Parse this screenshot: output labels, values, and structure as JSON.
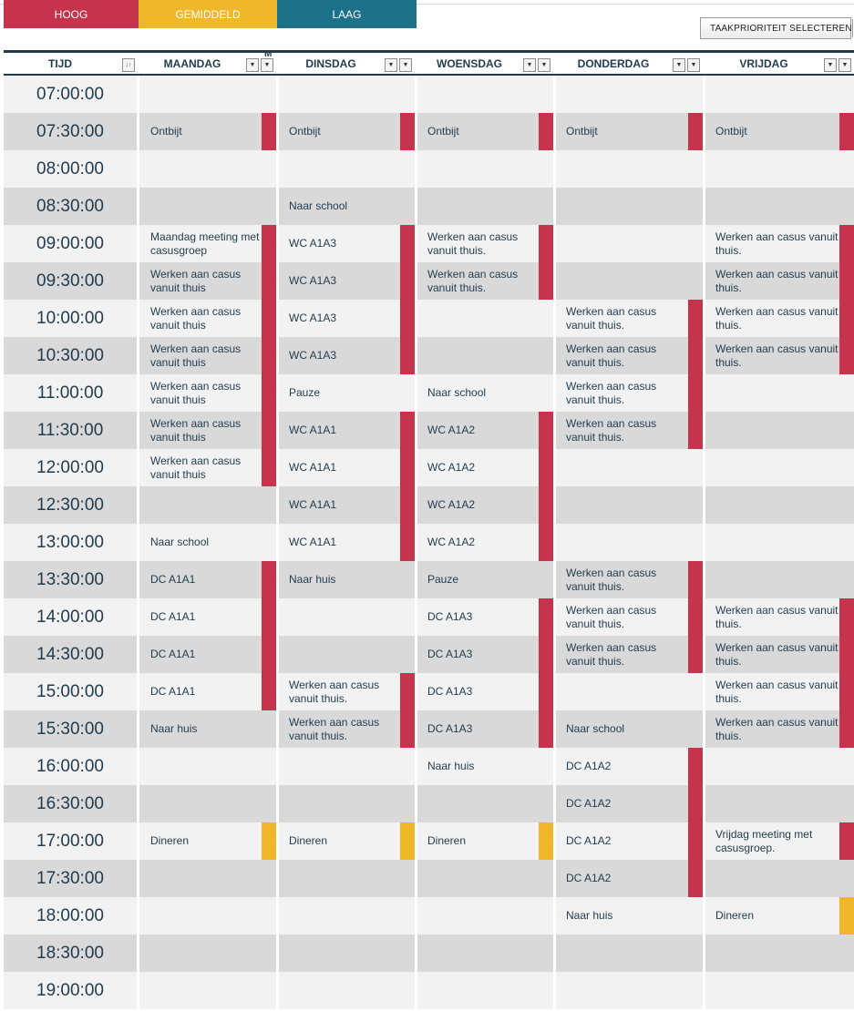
{
  "legend": {
    "high": "HOOG",
    "medium": "GEMIDDELD",
    "low": "LAAG"
  },
  "colors": {
    "high": "#c5334c",
    "medium": "#f1b72a",
    "low": "#1d7189",
    "header_rule": "#1f3b4d",
    "row_light": "#f2f2f2",
    "row_dark": "#d9d9d9"
  },
  "priority_selector": {
    "label": "TAAKPRIORITEIT SELECTEREN",
    "icon": "dropdown-arrow-icon"
  },
  "columns": [
    {
      "label": "TIJD",
      "filter_icon": "sort-filter-icon"
    },
    {
      "label": "MAANDAG",
      "filter_icon": "filter-dropdown-icon"
    },
    {
      "label": "DINSDAG",
      "filter_icon": "filter-dropdown-icon"
    },
    {
      "label": "WOENSDAG",
      "filter_icon": "filter-dropdown-icon"
    },
    {
      "label": "DONDERDAG",
      "filter_icon": "filter-dropdown-icon"
    },
    {
      "label": "VRIJDAG",
      "filter_icon": "filter-dropdown-icon"
    }
  ],
  "cut_header_fragment": "M",
  "times": [
    "07:00:00",
    "07:30:00",
    "08:00:00",
    "08:30:00",
    "09:00:00",
    "09:30:00",
    "10:00:00",
    "10:30:00",
    "11:00:00",
    "11:30:00",
    "12:00:00",
    "12:30:00",
    "13:00:00",
    "13:30:00",
    "14:00:00",
    "14:30:00",
    "15:00:00",
    "15:30:00",
    "16:00:00",
    "16:30:00",
    "17:00:00",
    "17:30:00",
    "18:00:00",
    "18:30:00",
    "19:00:00"
  ],
  "schedule": {
    "maandag": [
      "",
      "Ontbijt",
      "",
      "",
      "Maandag meeting met casusgroep",
      "Werken aan casus vanuit thuis",
      "Werken aan casus vanuit thuis",
      "Werken aan casus vanuit thuis",
      "Werken aan casus vanuit thuis",
      "Werken aan casus vanuit thuis",
      "Werken aan casus vanuit thuis",
      "",
      "Naar school",
      "DC A1A1",
      "DC A1A1",
      "DC A1A1",
      "DC A1A1",
      "Naar huis",
      "",
      "",
      "Dineren",
      "",
      "",
      "",
      ""
    ],
    "dinsdag": [
      "",
      "Ontbijt",
      "",
      "Naar school",
      "WC A1A3",
      "WC A1A3",
      "WC A1A3",
      "WC A1A3",
      "Pauze",
      "WC A1A1",
      "WC A1A1",
      "WC A1A1",
      "WC A1A1",
      "Naar huis",
      "",
      "",
      "Werken aan casus vanuit thuis.",
      "Werken aan casus vanuit thuis.",
      "",
      "",
      "Dineren",
      "",
      "",
      "",
      ""
    ],
    "woensdag": [
      "",
      "Ontbijt",
      "",
      "",
      "Werken aan casus vanuit thuis.",
      "Werken aan casus vanuit thuis.",
      "",
      "",
      "Naar school",
      "WC A1A2",
      "WC A1A2",
      "WC A1A2",
      "WC A1A2",
      "Pauze",
      "DC A1A3",
      "DC A1A3",
      "DC A1A3",
      "DC A1A3",
      "Naar huis",
      "",
      "Dineren",
      "",
      "",
      "",
      ""
    ],
    "donderdag": [
      "",
      "Ontbijt",
      "",
      "",
      "",
      "",
      "Werken aan casus vanuit thuis.",
      "Werken aan casus vanuit thuis.",
      "Werken aan casus vanuit thuis.",
      "Werken aan casus vanuit thuis.",
      "",
      "",
      "",
      "Werken aan casus vanuit thuis.",
      "Werken aan casus vanuit thuis.",
      "Werken aan casus vanuit thuis.",
      "",
      "Naar school",
      "DC A1A2",
      "DC A1A2",
      "DC A1A2",
      "DC A1A2",
      "Naar huis",
      "",
      ""
    ],
    "vrijdag": [
      "",
      "Ontbijt",
      "",
      "",
      "Werken aan casus vanuit thuis.",
      "Werken aan casus vanuit thuis.",
      "Werken aan casus vanuit thuis.",
      "Werken aan casus vanuit thuis.",
      "",
      "",
      "",
      "",
      "",
      "",
      "Werken aan casus vanuit thuis.",
      "Werken aan casus vanuit thuis.",
      "Werken aan casus vanuit thuis.",
      "Werken aan casus vanuit thuis.",
      "",
      "",
      "Vrijdag meeting met casusgroep.",
      "",
      "Dineren",
      "",
      ""
    ]
  },
  "priority_bars": {
    "maandag": [
      {
        "start": 1,
        "end": 1,
        "level": "high"
      },
      {
        "start": 4,
        "end": 10,
        "level": "high"
      },
      {
        "start": 13,
        "end": 16,
        "level": "high"
      },
      {
        "start": 20,
        "end": 20,
        "level": "medium"
      }
    ],
    "dinsdag": [
      {
        "start": 1,
        "end": 1,
        "level": "high"
      },
      {
        "start": 4,
        "end": 7,
        "level": "high"
      },
      {
        "start": 9,
        "end": 12,
        "level": "high"
      },
      {
        "start": 16,
        "end": 17,
        "level": "high"
      },
      {
        "start": 20,
        "end": 20,
        "level": "medium"
      }
    ],
    "woensdag": [
      {
        "start": 1,
        "end": 1,
        "level": "high"
      },
      {
        "start": 4,
        "end": 5,
        "level": "high"
      },
      {
        "start": 9,
        "end": 12,
        "level": "high"
      },
      {
        "start": 14,
        "end": 17,
        "level": "high"
      },
      {
        "start": 20,
        "end": 20,
        "level": "medium"
      }
    ],
    "donderdag": [
      {
        "start": 1,
        "end": 1,
        "level": "high"
      },
      {
        "start": 6,
        "end": 9,
        "level": "high"
      },
      {
        "start": 13,
        "end": 15,
        "level": "high"
      },
      {
        "start": 18,
        "end": 21,
        "level": "high"
      }
    ],
    "vrijdag": [
      {
        "start": 1,
        "end": 1,
        "level": "high"
      },
      {
        "start": 4,
        "end": 7,
        "level": "high"
      },
      {
        "start": 14,
        "end": 17,
        "level": "high"
      },
      {
        "start": 20,
        "end": 20,
        "level": "high"
      },
      {
        "start": 22,
        "end": 22,
        "level": "medium"
      }
    ]
  }
}
